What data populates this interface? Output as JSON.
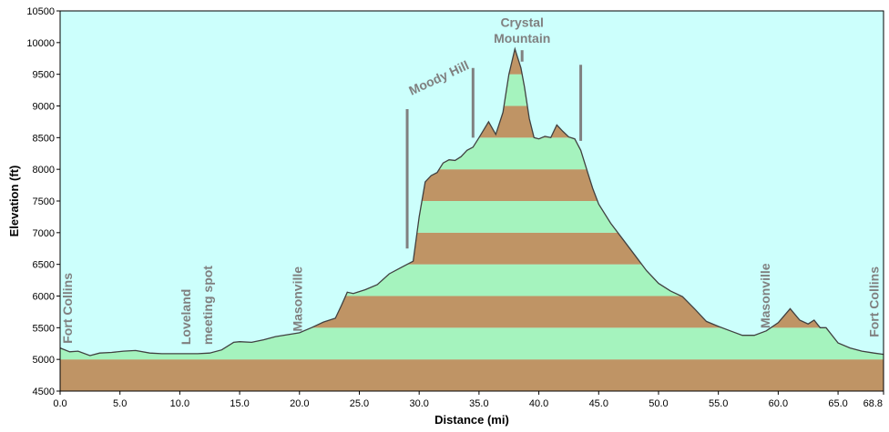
{
  "chart_data": {
    "type": "area",
    "title": "",
    "xlabel": "Distance   (mi)",
    "ylabel": "Elevation (ft)",
    "xlim": [
      0,
      68.8
    ],
    "ylim": [
      4500,
      10500
    ],
    "grid": false,
    "x_ticks": [
      0,
      5,
      10,
      15,
      20,
      25,
      30,
      35,
      40,
      45,
      50,
      55,
      60,
      65,
      68.8
    ],
    "x_tick_labels": [
      "0.0",
      "5.0",
      "10.0",
      "15.0",
      "20.0",
      "25.0",
      "30.0",
      "35.0",
      "40.0",
      "45.0",
      "50.0",
      "55.0",
      "60.0",
      "65.0",
      "68.8"
    ],
    "y_ticks": [
      4500,
      5000,
      5500,
      6000,
      6500,
      7000,
      7500,
      8000,
      8500,
      9000,
      9500,
      10000,
      10500
    ],
    "y_tick_labels": [
      "4500",
      "5000",
      "5500",
      "6000",
      "6500",
      "7000",
      "7500",
      "8000",
      "8500",
      "9000",
      "9500",
      "10000",
      "10500"
    ],
    "band_size": 500,
    "band_colors": [
      "#bf9465",
      "#a5f3be"
    ],
    "plot_background": "#ccfffc",
    "line_color": "#404040",
    "series": [
      {
        "x": [
          0,
          0.8,
          1.5,
          2.5,
          3.3,
          4.3,
          5.3,
          6.3,
          7.5,
          8.5,
          9.5,
          10.5,
          11.5,
          12.5,
          13.5,
          14.5,
          15.0,
          16.0,
          17.0,
          18.0,
          19.0,
          20.0,
          21.0,
          22.0,
          23.0,
          23.5,
          24.0,
          24.5,
          25.5,
          26.5,
          27.5,
          28.5,
          29.5,
          30.0,
          30.5,
          31.0,
          31.5,
          32.0,
          32.5,
          33.0,
          33.5,
          34.0,
          34.5,
          35.0,
          35.8,
          36.4,
          37.0,
          37.5,
          38.0,
          38.5,
          38.8,
          39.2,
          39.6,
          40.0,
          40.5,
          41.0,
          41.5,
          42.0,
          42.5,
          43.0,
          43.5,
          44.0,
          44.5,
          45.0,
          46.0,
          47.0,
          48.0,
          49.0,
          50.0,
          51.0,
          52.0,
          53.0,
          54.0,
          55.0,
          56.0,
          57.0,
          58.0,
          59.0,
          60.0,
          61.0,
          61.8,
          62.5,
          63.0,
          63.5,
          64.0,
          65.0,
          66.0,
          67.0,
          68.0,
          68.8
        ],
        "y": [
          5180,
          5120,
          5130,
          5060,
          5100,
          5110,
          5130,
          5140,
          5100,
          5090,
          5090,
          5090,
          5090,
          5100,
          5150,
          5270,
          5280,
          5270,
          5310,
          5360,
          5390,
          5420,
          5500,
          5590,
          5650,
          5850,
          6060,
          6040,
          6100,
          6180,
          6350,
          6450,
          6550,
          7250,
          7800,
          7900,
          7950,
          8100,
          8150,
          8140,
          8200,
          8300,
          8350,
          8500,
          8750,
          8550,
          8900,
          9500,
          9900,
          9600,
          9300,
          8800,
          8500,
          8480,
          8520,
          8500,
          8700,
          8600,
          8510,
          8480,
          8300,
          8000,
          7700,
          7450,
          7150,
          6900,
          6650,
          6400,
          6200,
          6080,
          5990,
          5800,
          5600,
          5520,
          5450,
          5380,
          5380,
          5450,
          5580,
          5800,
          5620,
          5560,
          5620,
          5500,
          5500,
          5260,
          5180,
          5130,
          5100,
          5080
        ]
      }
    ],
    "annotations": [
      {
        "text": "Fort Collins",
        "x": 1.0,
        "y": 5250,
        "rotate": -90
      },
      {
        "text": "Loveland",
        "x": 10.9,
        "y": 5230,
        "rotate": -90
      },
      {
        "text": "meeting spot",
        "x": 12.7,
        "y": 5230,
        "rotate": -90
      },
      {
        "text": "Masonville",
        "x": 20.2,
        "y": 5440,
        "rotate": -90
      },
      {
        "text": "Moody Hill",
        "x": 31.8,
        "y": 9380,
        "rotate": -25
      },
      {
        "text": "Crystal",
        "x": 38.6,
        "y": 10250,
        "rotate": 0
      },
      {
        "text": "Mountain",
        "x": 38.6,
        "y": 10000,
        "rotate": 0
      },
      {
        "text": "Masonville",
        "x": 59.3,
        "y": 5490,
        "rotate": -90
      },
      {
        "text": "Fort Collins",
        "x": 68.4,
        "y": 5350,
        "rotate": -90
      }
    ],
    "markers": [
      {
        "x": 29.0,
        "y1": 6750,
        "y2": 8950
      },
      {
        "x": 34.5,
        "y1": 8500,
        "y2": 9600
      },
      {
        "x": 38.6,
        "y1": 9700,
        "y2": 9880
      },
      {
        "x": 43.5,
        "y1": 8450,
        "y2": 9650
      }
    ]
  }
}
